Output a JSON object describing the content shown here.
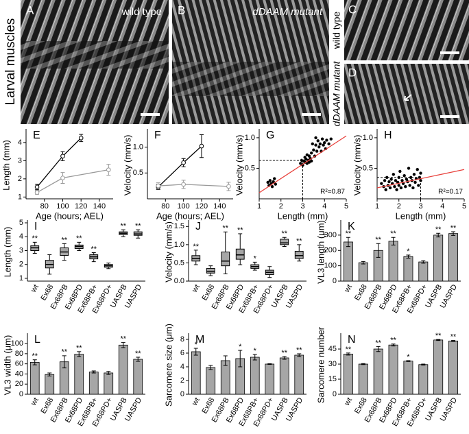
{
  "figure": {
    "title": "Larval muscles",
    "panels": [
      {
        "label": "A",
        "caption": "wild type"
      },
      {
        "label": "B",
        "caption": "dDAAM mutant"
      },
      {
        "label": "C",
        "side_label": "wild type"
      },
      {
        "label": "D",
        "side_label": "dDAAM mutant"
      }
    ]
  },
  "chart_data": [
    {
      "type": "line",
      "label": "E",
      "ylabel": "Length (mm)",
      "xlabel": "Age (hours; AEL)",
      "xlim": [
        60,
        155
      ],
      "xticks": [
        80,
        100,
        120,
        140
      ],
      "ylim": [
        0.9,
        4.6
      ],
      "yticks": [
        1,
        2,
        3,
        4
      ],
      "series": [
        {
          "color": "#000000",
          "x": [
            72,
            100,
            120
          ],
          "values": [
            1.55,
            3.25,
            4.25
          ],
          "errors": [
            0.15,
            0.25,
            0.2
          ]
        },
        {
          "color": "#999999",
          "x": [
            72,
            100,
            150
          ],
          "values": [
            1.25,
            2.05,
            2.5
          ],
          "errors": [
            0.1,
            0.3,
            0.3
          ]
        }
      ]
    },
    {
      "type": "line",
      "label": "F",
      "ylabel": "Velocity (mm/s)",
      "xlabel": "Age (hours; AEL)",
      "xlim": [
        60,
        155
      ],
      "xticks": [
        80,
        100,
        120,
        140
      ],
      "ylim": [
        0,
        1.3
      ],
      "yticks": [
        {
          "value": 0.5,
          "label": "0.5"
        },
        {
          "value": 1,
          "label": "1.0"
        }
      ],
      "series": [
        {
          "color": "#000000",
          "x": [
            72,
            100,
            120
          ],
          "values": [
            0.23,
            0.7,
            1.02
          ],
          "errors": [
            0.05,
            0.08,
            0.22
          ]
        },
        {
          "color": "#999999",
          "x": [
            72,
            100,
            150
          ],
          "values": [
            0.25,
            0.28,
            0.24
          ],
          "errors": [
            0.06,
            0.08,
            0.08
          ]
        }
      ]
    },
    {
      "type": "scatter",
      "label": "G",
      "ylabel": "Velocity (mm/s)",
      "xlabel": "Length (mm)",
      "xlim": [
        1,
        5
      ],
      "xticks": [
        1,
        2,
        3,
        4,
        5
      ],
      "ylim": [
        0,
        1.1
      ],
      "yticks": [
        {
          "value": 0.5,
          "label": "0.5"
        },
        {
          "value": 1,
          "label": "1.0"
        }
      ],
      "color": "#000000",
      "annotation": "R²=0.87",
      "x": [
        1.4,
        1.45,
        1.5,
        1.55,
        1.6,
        1.65,
        1.7,
        1.75,
        2.9,
        2.95,
        3.0,
        3.05,
        3.1,
        3.1,
        3.15,
        3.2,
        3.2,
        3.25,
        3.3,
        3.3,
        3.35,
        3.4,
        3.4,
        3.5,
        3.55,
        3.6,
        3.65,
        3.7,
        3.75,
        3.8,
        3.85,
        3.9,
        3.95,
        4.0,
        4.05,
        4.1,
        4.2,
        4.3,
        3.45,
        3.6
      ],
      "values": [
        0.27,
        0.22,
        0.3,
        0.25,
        0.2,
        0.28,
        0.33,
        0.24,
        0.58,
        0.63,
        0.55,
        0.62,
        0.6,
        0.68,
        0.65,
        0.58,
        0.72,
        0.63,
        0.7,
        0.6,
        0.66,
        0.75,
        0.62,
        0.8,
        0.7,
        0.88,
        0.78,
        0.95,
        0.85,
        0.9,
        0.78,
        0.98,
        0.88,
        0.92,
        0.82,
        0.96,
        0.9,
        0.98,
        0.9,
        1.0
      ],
      "fit": {
        "color": "#e8413c",
        "x": [
          1,
          5
        ],
        "values": [
          0.1,
          1.03
        ]
      },
      "guides": {
        "x": 3,
        "y": 0.63
      }
    },
    {
      "type": "scatter",
      "label": "H",
      "ylabel": "Velocity (mm/s)",
      "xlabel": "Length (mm)",
      "xlim": [
        1,
        5
      ],
      "xticks": [
        1,
        2,
        3,
        4,
        5
      ],
      "ylim": [
        0,
        1.1
      ],
      "yticks": [
        {
          "value": 0.5,
          "label": "0.5"
        },
        {
          "value": 1,
          "label": "1.0"
        }
      ],
      "color": "#000000",
      "annotation": "R²=0.17",
      "x": [
        1.2,
        1.3,
        1.35,
        1.4,
        1.45,
        1.5,
        1.55,
        1.6,
        1.65,
        1.7,
        1.75,
        1.8,
        1.85,
        1.9,
        1.95,
        2.0,
        2.0,
        2.05,
        2.1,
        2.15,
        2.2,
        2.25,
        2.3,
        2.35,
        2.4,
        2.45,
        2.5,
        2.55,
        2.6,
        2.65,
        2.7,
        2.75,
        2.8,
        2.85,
        2.9,
        2.95,
        3.0,
        3.0
      ],
      "values": [
        0.25,
        0.2,
        0.3,
        0.15,
        0.35,
        0.22,
        0.28,
        0.18,
        0.32,
        0.25,
        0.4,
        0.2,
        0.3,
        0.15,
        0.27,
        0.35,
        0.22,
        0.45,
        0.18,
        0.3,
        0.25,
        0.38,
        0.2,
        0.32,
        0.28,
        0.5,
        0.22,
        0.35,
        0.3,
        0.18,
        0.4,
        0.27,
        0.33,
        0.48,
        0.22,
        0.35,
        0.3,
        0.42
      ],
      "fit": {
        "color": "#e8413c",
        "x": [
          1,
          5
        ],
        "values": [
          0.18,
          0.48
        ]
      },
      "guides": {
        "x": 3,
        "y": 0.35
      }
    },
    {
      "type": "box",
      "label": "I",
      "ylabel": "Length (mm)",
      "ylim": [
        0.8,
        5
      ],
      "yticks": [
        1,
        2,
        3,
        4,
        5
      ],
      "color": "#a6a6a6",
      "categories": [
        "wt",
        "Ex68",
        "Ex68PB",
        "Ex68PD",
        "Ex68PB+",
        "Ex68PD+",
        "UASPB",
        "UASPD"
      ],
      "values": [
        [
          2.8,
          3.0,
          3.2,
          3.35,
          3.6
        ],
        [
          1.3,
          1.75,
          2.0,
          2.3,
          2.7
        ],
        [
          2.3,
          2.65,
          2.9,
          3.2,
          3.5
        ],
        [
          3.0,
          3.15,
          3.3,
          3.4,
          3.6
        ],
        [
          2.2,
          2.4,
          2.55,
          2.7,
          2.85
        ],
        [
          1.7,
          1.8,
          1.9,
          2.0,
          2.1
        ],
        [
          4.0,
          4.15,
          4.25,
          4.35,
          4.5
        ],
        [
          3.9,
          4.1,
          4.2,
          4.35,
          4.5
        ]
      ],
      "annotations": [
        "**",
        null,
        "**",
        "**",
        "**",
        null,
        "**",
        "**"
      ]
    },
    {
      "type": "box",
      "label": "J",
      "ylabel": "Velocity (mm/s)",
      "ylim": [
        0,
        1.6
      ],
      "color": "#a6a6a6",
      "yticks": [
        {
          "value": 0,
          "label": "0.0"
        },
        {
          "value": 0.5,
          "label": "0.5"
        },
        {
          "value": 1,
          "label": "1.0"
        },
        {
          "value": 1.5,
          "label": "1.5"
        }
      ],
      "categories": [
        "wt",
        "Ex68",
        "Ex68PB",
        "Ex68PD",
        "Ex68PB+",
        "Ex68PD+",
        "UASPB",
        "UASPD"
      ],
      "values": [
        [
          0.45,
          0.55,
          0.62,
          0.7,
          0.85
        ],
        [
          0.15,
          0.22,
          0.27,
          0.35,
          0.42
        ],
        [
          0.2,
          0.42,
          0.55,
          0.8,
          1.35
        ],
        [
          0.45,
          0.6,
          0.72,
          0.88,
          1.3
        ],
        [
          0.3,
          0.35,
          0.4,
          0.45,
          0.52
        ],
        [
          0.1,
          0.18,
          0.24,
          0.3,
          0.4
        ],
        [
          0.95,
          1.0,
          1.05,
          1.15,
          1.2
        ],
        [
          0.55,
          0.62,
          0.7,
          0.82,
          1.0
        ]
      ],
      "annotations": [
        "**",
        null,
        "**",
        "**",
        "*",
        null,
        "**",
        "**"
      ]
    },
    {
      "type": "bar",
      "label": "K",
      "ylabel": "VL3 length (μm)",
      "ylim": [
        0,
        380
      ],
      "yticks": [
        0,
        100,
        200,
        300
      ],
      "color": "#a6a6a6",
      "categories": [
        "wt",
        "Ex68",
        "Ex68PB",
        "Ex68PD",
        "Ex68PB+",
        "Ex68PD+",
        "UASPB",
        "UASPD"
      ],
      "values": [
        255,
        120,
        200,
        260,
        160,
        125,
        300,
        310
      ],
      "errors": [
        30,
        8,
        45,
        25,
        10,
        8,
        12,
        12
      ],
      "annotations": [
        "**",
        null,
        "**",
        "**",
        "*",
        null,
        "**",
        "**"
      ]
    },
    {
      "type": "bar",
      "label": "L",
      "ylabel": "VL3 width (μm)",
      "ylim": [
        0,
        115
      ],
      "yticks": [
        0,
        20,
        40,
        60,
        80,
        100
      ],
      "color": "#a6a6a6",
      "categories": [
        "wt",
        "Ex68",
        "Ex68PB",
        "Ex68PD",
        "Ex68PB+",
        "Ex68PD+",
        "UASPB",
        "UASPD"
      ],
      "values": [
        63,
        39,
        64,
        79,
        44,
        42,
        97,
        69
      ],
      "errors": [
        5,
        3,
        12,
        5,
        2,
        3,
        5,
        4
      ],
      "annotations": [
        "**",
        null,
        "**",
        "**",
        null,
        null,
        "**",
        "**"
      ]
    },
    {
      "type": "bar",
      "label": "M",
      "ylabel": "Sarcomere size (μm)",
      "ylim": [
        0,
        8.5
      ],
      "yticks": [
        0,
        2,
        4,
        6,
        8
      ],
      "color": "#a6a6a6",
      "categories": [
        "wt",
        "Ex68",
        "Ex68PB",
        "Ex68PD",
        "Ex68PB+",
        "Ex68PD+",
        "UASPB",
        "UASPD"
      ],
      "values": [
        6.2,
        3.9,
        4.9,
        5.2,
        5.4,
        4.4,
        5.3,
        5.7
      ],
      "errors": [
        0.5,
        0.3,
        0.7,
        1.2,
        0.4,
        0.05,
        0.2,
        0.2
      ],
      "annotations": [
        "*",
        null,
        null,
        "*",
        "*",
        null,
        "**",
        "**"
      ]
    },
    {
      "type": "bar",
      "label": "N",
      "ylabel": "Sarcomere number",
      "ylim": [
        0,
        58
      ],
      "yticks": [
        0,
        15,
        30,
        45
      ],
      "color": "#a6a6a6",
      "categories": [
        "wt",
        "Ex68",
        "Ex68PB",
        "Ex68PD",
        "Ex68PB+",
        "Ex68PD+",
        "UASPB",
        "UASPD"
      ],
      "values": [
        40,
        30,
        45,
        49,
        33,
        29.5,
        54,
        53
      ],
      "errors": [
        1,
        0.5,
        2.5,
        1,
        0.4,
        0.5,
        0.5,
        0.5
      ],
      "annotations": [
        "**",
        null,
        "**",
        "**",
        "*",
        null,
        "**",
        "**"
      ]
    }
  ]
}
